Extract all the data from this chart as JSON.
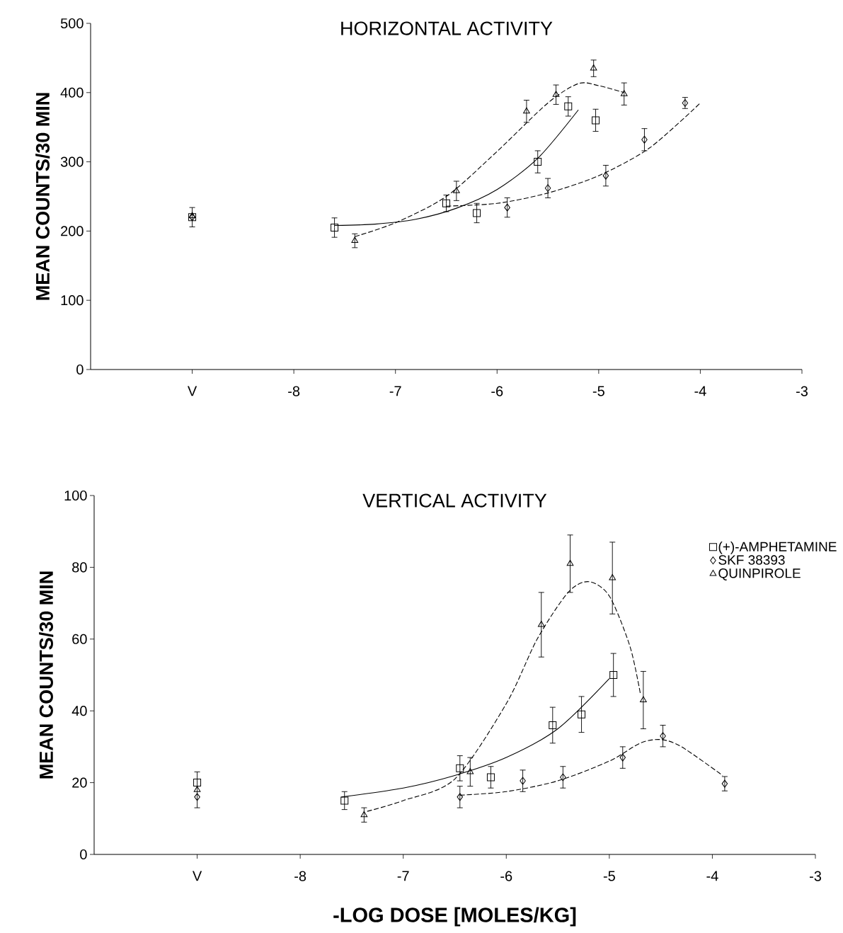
{
  "chart_data": [
    {
      "type": "scatter",
      "title": "HORIZONTAL ACTIVITY",
      "ylabel": "MEAN COUNTS/30 MIN",
      "xlim": [
        -10,
        -3
      ],
      "ylim": [
        0,
        500
      ],
      "xticks": [
        {
          "value": -9,
          "label": "V"
        },
        -8,
        -7,
        -6,
        -5,
        -4,
        -3
      ],
      "yticks": [
        0,
        100,
        200,
        300,
        400,
        500
      ],
      "legend": false,
      "series": [
        {
          "marker": "square",
          "color": "#000000",
          "x": [
            -9,
            -7.6,
            -6.5,
            -6.2,
            -5.6,
            -5.3,
            -5.03
          ],
          "values": [
            220,
            205,
            240,
            226,
            300,
            380,
            360
          ],
          "errors": [
            14,
            14,
            12,
            14,
            16,
            14,
            16
          ]
        },
        {
          "marker": "diamond",
          "color": "#000000",
          "x": [
            -9,
            -5.9,
            -5.5,
            -4.93,
            -4.55,
            -4.15
          ],
          "values": [
            220,
            234,
            262,
            280,
            332,
            385
          ],
          "errors": [
            null,
            14,
            14,
            15,
            16,
            8
          ]
        },
        {
          "marker": "triangle",
          "color": "#000000",
          "x": [
            -9,
            -7.4,
            -6.4,
            -5.71,
            -5.42,
            -5.05,
            -4.75
          ],
          "values": [
            222,
            186,
            258,
            373,
            397,
            435,
            398
          ],
          "errors": [
            null,
            10,
            14,
            16,
            14,
            12,
            16
          ]
        },
        {
          "type": "line",
          "marker": "none",
          "line_style": "solid",
          "color": "#000000",
          "x": [
            -7.6,
            -7.2,
            -6.8,
            -6.4,
            -6,
            -5.6,
            -5.2
          ],
          "values": [
            208,
            210,
            217,
            233,
            260,
            305,
            375
          ]
        },
        {
          "type": "line",
          "marker": "none",
          "line_style": "dashed",
          "color": "#000000",
          "x": [
            -6.5,
            -6,
            -5.5,
            -5,
            -4.5,
            -4.0
          ],
          "values": [
            236,
            240,
            255,
            280,
            320,
            385
          ]
        },
        {
          "type": "line",
          "marker": "none",
          "line_style": "dashed",
          "color": "#000000",
          "x": [
            -7.4,
            -7,
            -6.5,
            -6,
            -5.5,
            -5.2,
            -5,
            -4.75
          ],
          "values": [
            192,
            212,
            250,
            315,
            385,
            413,
            410,
            400
          ]
        }
      ]
    },
    {
      "type": "scatter",
      "title": "VERTICAL ACTIVITY",
      "xlabel": "-LOG DOSE [MOLES/KG]",
      "ylabel": "MEAN COUNTS/30 MIN",
      "xlim": [
        -10,
        -3
      ],
      "ylim": [
        0,
        100
      ],
      "xticks": [
        {
          "value": -9,
          "label": "V"
        },
        -8,
        -7,
        -6,
        -5,
        -4,
        -3
      ],
      "yticks": [
        0,
        20,
        40,
        60,
        80,
        100
      ],
      "legend": "top right",
      "series": [
        {
          "name": "(+)-AMPHETAMINE",
          "marker": "square",
          "color": "#000000",
          "x": [
            -9,
            -7.57,
            -6.45,
            -6.15,
            -5.55,
            -5.27,
            -4.96
          ],
          "values": [
            20,
            15,
            24,
            21.5,
            36,
            39,
            50
          ],
          "errors": [
            null,
            2.5,
            3.5,
            3,
            5,
            5,
            6
          ]
        },
        {
          "name": "SKF 38393",
          "marker": "diamond",
          "color": "#000000",
          "x": [
            -9,
            -6.45,
            -5.84,
            -5.45,
            -4.87,
            -4.48,
            -3.88
          ],
          "values": [
            16,
            16,
            20.5,
            21.5,
            27,
            33,
            19.7
          ],
          "errors": [
            null,
            3,
            3,
            3,
            3,
            3,
            2
          ]
        },
        {
          "name": "QUINPIROLE",
          "marker": "triangle",
          "color": "#000000",
          "x": [
            -9,
            -7.38,
            -6.35,
            -5.66,
            -5.38,
            -4.97,
            -4.67
          ],
          "values": [
            18,
            11,
            23,
            64,
            81,
            77,
            43
          ],
          "errors": [
            5,
            2,
            4,
            9,
            8,
            10,
            8
          ]
        },
        {
          "type": "line",
          "marker": "none",
          "line_style": "solid",
          "color": "#000000",
          "x": [
            -7.6,
            -7,
            -6.5,
            -6,
            -5.5,
            -5
          ],
          "values": [
            16,
            18.5,
            22,
            27,
            35,
            49
          ]
        },
        {
          "type": "line",
          "marker": "none",
          "line_style": "dashed",
          "color": "#000000",
          "x": [
            -6.45,
            -6,
            -5.5,
            -5,
            -4.7,
            -4.5,
            -4.3,
            -3.9
          ],
          "values": [
            16.5,
            17.5,
            20.5,
            26,
            31,
            32,
            30,
            22
          ]
        },
        {
          "type": "line",
          "marker": "none",
          "line_style": "dashed",
          "color": "#000000",
          "x": [
            -7.35,
            -7,
            -6.5,
            -6,
            -5.7,
            -5.4,
            -5.2,
            -5,
            -4.8,
            -4.7
          ],
          "values": [
            12,
            15,
            21,
            42,
            60,
            73,
            76,
            72,
            58,
            45
          ]
        }
      ]
    }
  ]
}
